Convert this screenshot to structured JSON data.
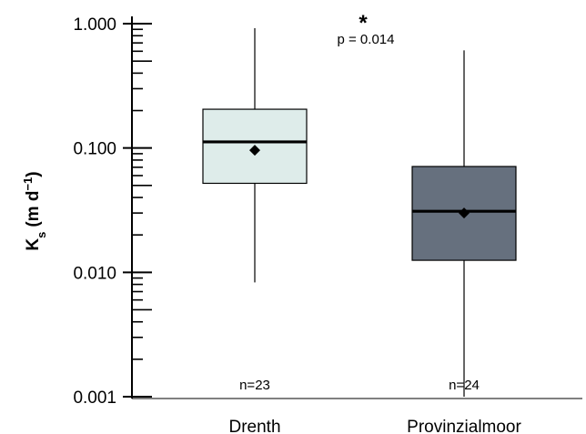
{
  "chart_data": {
    "type": "box",
    "ylabel": {
      "main": "K",
      "sub": "s",
      "units": "(m d",
      "sup": "−1",
      "close": ")"
    },
    "yscale": "log",
    "ylim": [
      0.001,
      1.0
    ],
    "yticks": [
      {
        "value": 0.001,
        "label": "0.001"
      },
      {
        "value": 0.01,
        "label": "0.010"
      },
      {
        "value": 0.1,
        "label": "0.100"
      },
      {
        "value": 1.0,
        "label": "1.000"
      }
    ],
    "categories": [
      "Drenth",
      "Provinzialmoor"
    ],
    "boxes": [
      {
        "name": "Drenth",
        "min": 0.0083,
        "q1": 0.052,
        "median": 0.112,
        "q3": 0.205,
        "max": 0.92,
        "mean": 0.096,
        "n_label": "n=23",
        "color": "#deecea"
      },
      {
        "name": "Provinzialmoor",
        "min": 0.001,
        "q1": 0.0125,
        "median": 0.031,
        "q3": 0.071,
        "max": 0.61,
        "mean": 0.03,
        "n_label": "n=24",
        "color": "#66707e"
      }
    ],
    "annotations": {
      "significance": "*",
      "p_value": "p = 0.014"
    }
  }
}
